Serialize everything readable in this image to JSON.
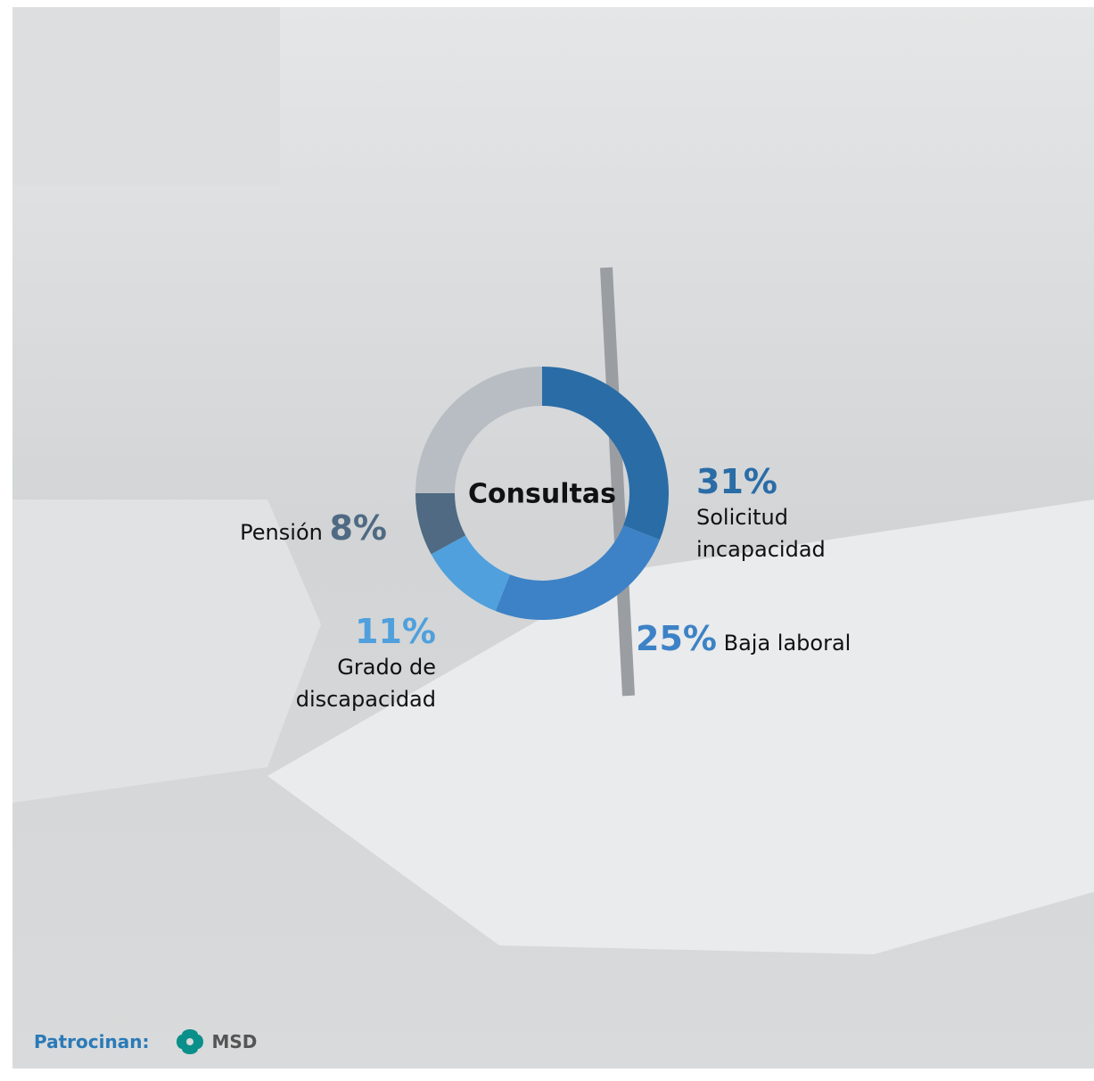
{
  "chart_data": {
    "type": "donut",
    "title": "Consultas",
    "categories": [
      "Solicitud incapacidad",
      "Baja laboral",
      "Grado de discapacidad",
      "Pensión",
      null
    ],
    "values": [
      31,
      25,
      11,
      8,
      25
    ],
    "value_labels": [
      "31%",
      "25%",
      "11%",
      "8%",
      null
    ],
    "colors": [
      "#2a6ca6",
      "#3d82c6",
      "#4fa0dc",
      "#4f6a82",
      "#b7bdc3"
    ]
  },
  "footer": {
    "label": "Patrocinan:",
    "logo": "MSD"
  }
}
